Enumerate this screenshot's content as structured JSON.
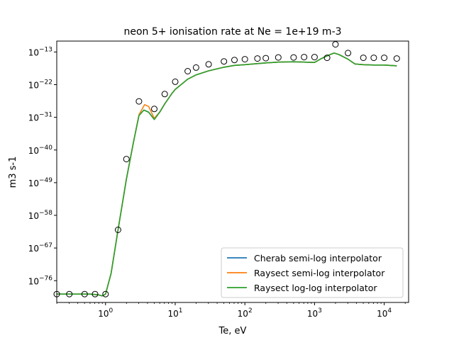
{
  "chart_data": {
    "type": "line",
    "title": "neon 5+ ionisation rate at Ne = 1e+19 m-3",
    "xlabel": "Te, eV",
    "ylabel": "m3 s-1",
    "xscale": "log",
    "yscale": "log",
    "xlim_exp": [
      -0.7,
      4.35
    ],
    "ylim_exp": [
      -82,
      -10
    ],
    "x_ticks": [
      {
        "base": "10",
        "exp": "0",
        "value_exp": 0
      },
      {
        "base": "10",
        "exp": "1",
        "value_exp": 1
      },
      {
        "base": "10",
        "exp": "2",
        "value_exp": 2
      },
      {
        "base": "10",
        "exp": "3",
        "value_exp": 3
      },
      {
        "base": "10",
        "exp": "4",
        "value_exp": 4
      }
    ],
    "y_ticks": [
      {
        "base": "10",
        "exp": "−13",
        "value_exp": -13
      },
      {
        "base": "10",
        "exp": "−22",
        "value_exp": -22
      },
      {
        "base": "10",
        "exp": "−31",
        "value_exp": -31
      },
      {
        "base": "10",
        "exp": "−40",
        "value_exp": -40
      },
      {
        "base": "10",
        "exp": "−49",
        "value_exp": -49
      },
      {
        "base": "10",
        "exp": "−58",
        "value_exp": -58
      },
      {
        "base": "10",
        "exp": "−67",
        "value_exp": -67
      },
      {
        "base": "10",
        "exp": "−76",
        "value_exp": -76
      }
    ],
    "legend_position": "bottom-right",
    "series": [
      {
        "name": "Cherab semi-log interpolator",
        "color": "#1f77b4",
        "points_log": [
          [
            -0.7,
            -79.7
          ],
          [
            -0.52,
            -79.7
          ],
          [
            -0.37,
            -79.7
          ],
          [
            -0.22,
            -79.7
          ],
          [
            -0.1,
            -79.9
          ],
          [
            -0.05,
            -80.2
          ],
          [
            0,
            -79.7
          ],
          [
            0.08,
            -74
          ],
          [
            0.18,
            -62
          ],
          [
            0.3,
            -48
          ],
          [
            0.4,
            -38
          ],
          [
            0.48,
            -30.5
          ],
          [
            0.55,
            -29
          ],
          [
            0.62,
            -29.6
          ],
          [
            0.7,
            -31.6
          ],
          [
            0.78,
            -29.5
          ],
          [
            0.85,
            -27.3
          ],
          [
            0.95,
            -24.5
          ],
          [
            1.0,
            -23.3
          ],
          [
            1.18,
            -20.5
          ],
          [
            1.3,
            -19.3
          ],
          [
            1.48,
            -18.2
          ],
          [
            1.7,
            -17.2
          ],
          [
            1.85,
            -16.7
          ],
          [
            2.0,
            -16.5
          ],
          [
            2.18,
            -16.2
          ],
          [
            2.3,
            -16.0
          ],
          [
            2.48,
            -15.8
          ],
          [
            2.7,
            -15.7
          ],
          [
            2.85,
            -15.8
          ],
          [
            3.0,
            -15.9
          ],
          [
            3.1,
            -14.8
          ],
          [
            3.2,
            -13.9
          ],
          [
            3.28,
            -13.3
          ],
          [
            3.35,
            -13.7
          ],
          [
            3.48,
            -15.0
          ],
          [
            3.58,
            -16.3
          ],
          [
            3.7,
            -16.5
          ],
          [
            3.85,
            -16.6
          ],
          [
            4.0,
            -16.6
          ],
          [
            4.18,
            -16.8
          ]
        ]
      },
      {
        "name": "Raysect semi-log interpolator",
        "color": "#ff7f0e",
        "points_log": [
          [
            -0.7,
            -79.7
          ],
          [
            -0.52,
            -79.7
          ],
          [
            -0.37,
            -79.7
          ],
          [
            -0.22,
            -79.7
          ],
          [
            -0.1,
            -79.9
          ],
          [
            -0.05,
            -80.2
          ],
          [
            0,
            -79.7
          ],
          [
            0.08,
            -74
          ],
          [
            0.18,
            -62
          ],
          [
            0.3,
            -48
          ],
          [
            0.4,
            -38
          ],
          [
            0.48,
            -30.3
          ],
          [
            0.56,
            -27.5
          ],
          [
            0.62,
            -28
          ],
          [
            0.7,
            -31.3
          ],
          [
            0.78,
            -29.5
          ],
          [
            0.85,
            -27.3
          ],
          [
            0.95,
            -24.5
          ],
          [
            1.0,
            -23.3
          ],
          [
            1.18,
            -20.5
          ],
          [
            1.3,
            -19.3
          ],
          [
            1.48,
            -18.2
          ],
          [
            1.7,
            -17.2
          ],
          [
            1.85,
            -16.7
          ],
          [
            2.0,
            -16.5
          ],
          [
            2.18,
            -16.2
          ],
          [
            2.3,
            -16.0
          ],
          [
            2.48,
            -15.8
          ],
          [
            2.7,
            -15.7
          ],
          [
            2.85,
            -15.8
          ],
          [
            3.0,
            -15.9
          ],
          [
            3.1,
            -14.8
          ],
          [
            3.2,
            -13.9
          ],
          [
            3.28,
            -13.3
          ],
          [
            3.35,
            -13.7
          ],
          [
            3.48,
            -15.0
          ],
          [
            3.58,
            -16.3
          ],
          [
            3.7,
            -16.5
          ],
          [
            3.85,
            -16.6
          ],
          [
            4.0,
            -16.6
          ],
          [
            4.18,
            -16.8
          ]
        ]
      },
      {
        "name": "Raysect log-log interpolator",
        "color": "#2ca02c",
        "points_log": [
          [
            -0.7,
            -79.7
          ],
          [
            -0.52,
            -79.7
          ],
          [
            -0.37,
            -79.7
          ],
          [
            -0.22,
            -79.7
          ],
          [
            -0.1,
            -79.9
          ],
          [
            -0.05,
            -80.2
          ],
          [
            0,
            -79.7
          ],
          [
            0.08,
            -74
          ],
          [
            0.18,
            -62
          ],
          [
            0.3,
            -48
          ],
          [
            0.4,
            -38
          ],
          [
            0.48,
            -30.5
          ],
          [
            0.55,
            -29
          ],
          [
            0.62,
            -29.6
          ],
          [
            0.7,
            -31.6
          ],
          [
            0.78,
            -29.5
          ],
          [
            0.85,
            -27.3
          ],
          [
            0.95,
            -24.5
          ],
          [
            1.0,
            -23.3
          ],
          [
            1.18,
            -20.5
          ],
          [
            1.3,
            -19.3
          ],
          [
            1.48,
            -18.2
          ],
          [
            1.7,
            -17.2
          ],
          [
            1.85,
            -16.7
          ],
          [
            2.0,
            -16.5
          ],
          [
            2.18,
            -16.2
          ],
          [
            2.3,
            -16.0
          ],
          [
            2.48,
            -15.8
          ],
          [
            2.7,
            -15.7
          ],
          [
            2.85,
            -15.8
          ],
          [
            3.0,
            -15.9
          ],
          [
            3.1,
            -14.8
          ],
          [
            3.2,
            -13.9
          ],
          [
            3.28,
            -13.3
          ],
          [
            3.35,
            -13.7
          ],
          [
            3.48,
            -15.0
          ],
          [
            3.58,
            -16.3
          ],
          [
            3.7,
            -16.5
          ],
          [
            3.85,
            -16.6
          ],
          [
            4.0,
            -16.6
          ],
          [
            4.18,
            -16.8
          ]
        ]
      }
    ],
    "markers_log": [
      [
        -0.7,
        -79.7
      ],
      [
        -0.52,
        -79.7
      ],
      [
        -0.3,
        -79.7
      ],
      [
        -0.15,
        -79.7
      ],
      [
        0,
        -79.7
      ],
      [
        0.18,
        -62
      ],
      [
        0.3,
        -42.5
      ],
      [
        0.48,
        -26.6
      ],
      [
        0.7,
        -28.7
      ],
      [
        0.85,
        -24.6
      ],
      [
        1.0,
        -21.2
      ],
      [
        1.18,
        -18.3
      ],
      [
        1.3,
        -17.3
      ],
      [
        1.48,
        -16.4
      ],
      [
        1.7,
        -15.6
      ],
      [
        1.85,
        -15.2
      ],
      [
        2.0,
        -15.0
      ],
      [
        2.18,
        -14.8
      ],
      [
        2.3,
        -14.7
      ],
      [
        2.48,
        -14.5
      ],
      [
        2.7,
        -14.5
      ],
      [
        2.85,
        -14.4
      ],
      [
        3.0,
        -14.4
      ],
      [
        3.18,
        -14.6
      ],
      [
        3.3,
        -10.9
      ],
      [
        3.48,
        -13.3
      ],
      [
        3.7,
        -14.6
      ],
      [
        3.85,
        -14.6
      ],
      [
        4.0,
        -14.6
      ],
      [
        4.18,
        -14.8
      ]
    ]
  }
}
